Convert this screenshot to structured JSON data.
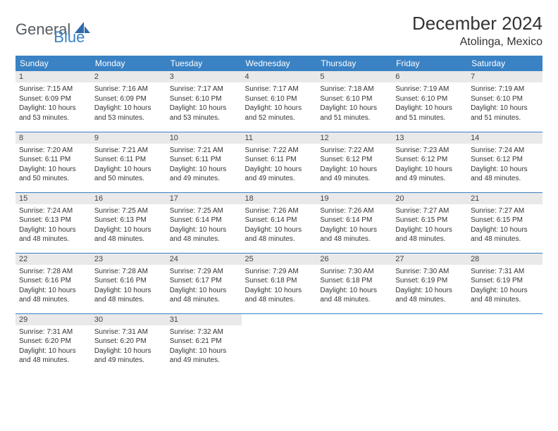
{
  "logo": {
    "text1": "General",
    "text2": "Blue"
  },
  "title": "December 2024",
  "location": "Atolinga, Mexico",
  "colors": {
    "header_bg": "#3a82c4",
    "header_text": "#ffffff",
    "daynum_bg": "#e9e9e9",
    "border": "#3a82c4",
    "logo_gray": "#555c63",
    "logo_blue": "#3a82c4"
  },
  "weekdays": [
    "Sunday",
    "Monday",
    "Tuesday",
    "Wednesday",
    "Thursday",
    "Friday",
    "Saturday"
  ],
  "weeks": [
    [
      {
        "num": "1",
        "sunrise": "Sunrise: 7:15 AM",
        "sunset": "Sunset: 6:09 PM",
        "daylight": "Daylight: 10 hours and 53 minutes."
      },
      {
        "num": "2",
        "sunrise": "Sunrise: 7:16 AM",
        "sunset": "Sunset: 6:09 PM",
        "daylight": "Daylight: 10 hours and 53 minutes."
      },
      {
        "num": "3",
        "sunrise": "Sunrise: 7:17 AM",
        "sunset": "Sunset: 6:10 PM",
        "daylight": "Daylight: 10 hours and 53 minutes."
      },
      {
        "num": "4",
        "sunrise": "Sunrise: 7:17 AM",
        "sunset": "Sunset: 6:10 PM",
        "daylight": "Daylight: 10 hours and 52 minutes."
      },
      {
        "num": "5",
        "sunrise": "Sunrise: 7:18 AM",
        "sunset": "Sunset: 6:10 PM",
        "daylight": "Daylight: 10 hours and 51 minutes."
      },
      {
        "num": "6",
        "sunrise": "Sunrise: 7:19 AM",
        "sunset": "Sunset: 6:10 PM",
        "daylight": "Daylight: 10 hours and 51 minutes."
      },
      {
        "num": "7",
        "sunrise": "Sunrise: 7:19 AM",
        "sunset": "Sunset: 6:10 PM",
        "daylight": "Daylight: 10 hours and 51 minutes."
      }
    ],
    [
      {
        "num": "8",
        "sunrise": "Sunrise: 7:20 AM",
        "sunset": "Sunset: 6:11 PM",
        "daylight": "Daylight: 10 hours and 50 minutes."
      },
      {
        "num": "9",
        "sunrise": "Sunrise: 7:21 AM",
        "sunset": "Sunset: 6:11 PM",
        "daylight": "Daylight: 10 hours and 50 minutes."
      },
      {
        "num": "10",
        "sunrise": "Sunrise: 7:21 AM",
        "sunset": "Sunset: 6:11 PM",
        "daylight": "Daylight: 10 hours and 49 minutes."
      },
      {
        "num": "11",
        "sunrise": "Sunrise: 7:22 AM",
        "sunset": "Sunset: 6:11 PM",
        "daylight": "Daylight: 10 hours and 49 minutes."
      },
      {
        "num": "12",
        "sunrise": "Sunrise: 7:22 AM",
        "sunset": "Sunset: 6:12 PM",
        "daylight": "Daylight: 10 hours and 49 minutes."
      },
      {
        "num": "13",
        "sunrise": "Sunrise: 7:23 AM",
        "sunset": "Sunset: 6:12 PM",
        "daylight": "Daylight: 10 hours and 49 minutes."
      },
      {
        "num": "14",
        "sunrise": "Sunrise: 7:24 AM",
        "sunset": "Sunset: 6:12 PM",
        "daylight": "Daylight: 10 hours and 48 minutes."
      }
    ],
    [
      {
        "num": "15",
        "sunrise": "Sunrise: 7:24 AM",
        "sunset": "Sunset: 6:13 PM",
        "daylight": "Daylight: 10 hours and 48 minutes."
      },
      {
        "num": "16",
        "sunrise": "Sunrise: 7:25 AM",
        "sunset": "Sunset: 6:13 PM",
        "daylight": "Daylight: 10 hours and 48 minutes."
      },
      {
        "num": "17",
        "sunrise": "Sunrise: 7:25 AM",
        "sunset": "Sunset: 6:14 PM",
        "daylight": "Daylight: 10 hours and 48 minutes."
      },
      {
        "num": "18",
        "sunrise": "Sunrise: 7:26 AM",
        "sunset": "Sunset: 6:14 PM",
        "daylight": "Daylight: 10 hours and 48 minutes."
      },
      {
        "num": "19",
        "sunrise": "Sunrise: 7:26 AM",
        "sunset": "Sunset: 6:14 PM",
        "daylight": "Daylight: 10 hours and 48 minutes."
      },
      {
        "num": "20",
        "sunrise": "Sunrise: 7:27 AM",
        "sunset": "Sunset: 6:15 PM",
        "daylight": "Daylight: 10 hours and 48 minutes."
      },
      {
        "num": "21",
        "sunrise": "Sunrise: 7:27 AM",
        "sunset": "Sunset: 6:15 PM",
        "daylight": "Daylight: 10 hours and 48 minutes."
      }
    ],
    [
      {
        "num": "22",
        "sunrise": "Sunrise: 7:28 AM",
        "sunset": "Sunset: 6:16 PM",
        "daylight": "Daylight: 10 hours and 48 minutes."
      },
      {
        "num": "23",
        "sunrise": "Sunrise: 7:28 AM",
        "sunset": "Sunset: 6:16 PM",
        "daylight": "Daylight: 10 hours and 48 minutes."
      },
      {
        "num": "24",
        "sunrise": "Sunrise: 7:29 AM",
        "sunset": "Sunset: 6:17 PM",
        "daylight": "Daylight: 10 hours and 48 minutes."
      },
      {
        "num": "25",
        "sunrise": "Sunrise: 7:29 AM",
        "sunset": "Sunset: 6:18 PM",
        "daylight": "Daylight: 10 hours and 48 minutes."
      },
      {
        "num": "26",
        "sunrise": "Sunrise: 7:30 AM",
        "sunset": "Sunset: 6:18 PM",
        "daylight": "Daylight: 10 hours and 48 minutes."
      },
      {
        "num": "27",
        "sunrise": "Sunrise: 7:30 AM",
        "sunset": "Sunset: 6:19 PM",
        "daylight": "Daylight: 10 hours and 48 minutes."
      },
      {
        "num": "28",
        "sunrise": "Sunrise: 7:31 AM",
        "sunset": "Sunset: 6:19 PM",
        "daylight": "Daylight: 10 hours and 48 minutes."
      }
    ],
    [
      {
        "num": "29",
        "sunrise": "Sunrise: 7:31 AM",
        "sunset": "Sunset: 6:20 PM",
        "daylight": "Daylight: 10 hours and 48 minutes."
      },
      {
        "num": "30",
        "sunrise": "Sunrise: 7:31 AM",
        "sunset": "Sunset: 6:20 PM",
        "daylight": "Daylight: 10 hours and 49 minutes."
      },
      {
        "num": "31",
        "sunrise": "Sunrise: 7:32 AM",
        "sunset": "Sunset: 6:21 PM",
        "daylight": "Daylight: 10 hours and 49 minutes."
      },
      null,
      null,
      null,
      null
    ]
  ]
}
